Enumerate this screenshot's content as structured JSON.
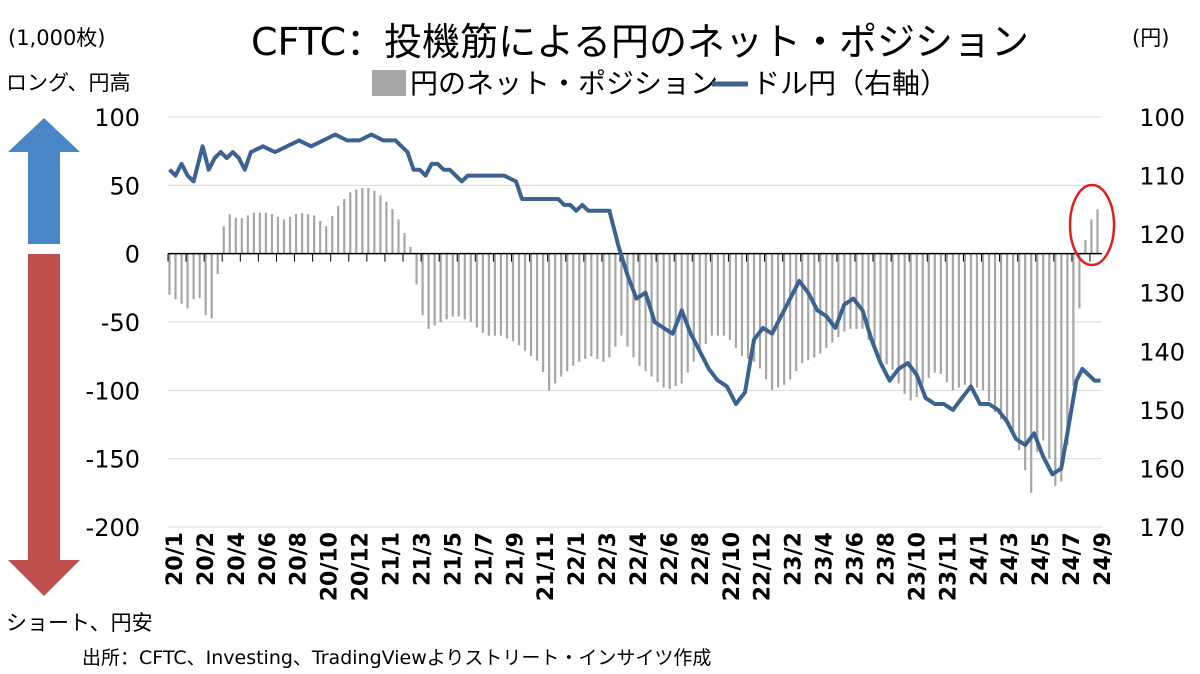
{
  "title": "CFTC：投機筋による円のネット・ポジション",
  "legend": {
    "bar_label": "円のネット・ポジション",
    "line_label": "ドル円（右軸）"
  },
  "left_unit": "(1,000枚)",
  "right_unit": "(円)",
  "arrow_up_label": "ロング、円高",
  "arrow_down_label": "ショート、円安",
  "source": "出所：CFTC、Investing、TradingViewよりストリート・インサイツ作成",
  "colors": {
    "bars": "#a6a6a6",
    "line": "#3b6290",
    "arrow_up": "#4a86c5",
    "arrow_down": "#c0504d",
    "highlight": "#e02020",
    "grid": "#d9d9d9"
  },
  "chart_data": {
    "type": "bar+line",
    "x_tick_labels": [
      "20/1",
      "20/2",
      "20/4",
      "20/6",
      "20/8",
      "20/10",
      "20/12",
      "21/1",
      "21/3",
      "21/5",
      "21/7",
      "21/9",
      "21/11",
      "22/1",
      "22/3",
      "22/4",
      "22/6",
      "22/8",
      "22/10",
      "22/12",
      "23/2",
      "23/4",
      "23/6",
      "23/8",
      "23/10",
      "23/11",
      "24/1",
      "24/3",
      "24/5",
      "24/7",
      "24/9"
    ],
    "y_left": {
      "min": -200,
      "max": 100,
      "ticks": [
        100,
        50,
        0,
        -50,
        -100,
        -150,
        -200
      ]
    },
    "y_right": {
      "min": 100,
      "max": 170,
      "inverted": true,
      "ticks": [
        100,
        110,
        120,
        130,
        140,
        150,
        160,
        170
      ]
    },
    "bar_series": {
      "name": "円のネット・ポジション",
      "weekly_anchors": [
        [
          0,
          -30
        ],
        [
          3,
          -35
        ],
        [
          6,
          -40
        ],
        [
          9,
          -30
        ],
        [
          11,
          -35
        ],
        [
          13,
          -55
        ],
        [
          15,
          -40
        ],
        [
          17,
          10
        ],
        [
          19,
          30
        ],
        [
          23,
          25
        ],
        [
          28,
          30
        ],
        [
          33,
          30
        ],
        [
          38,
          25
        ],
        [
          43,
          30
        ],
        [
          48,
          28
        ],
        [
          52,
          20
        ],
        [
          56,
          35
        ],
        [
          60,
          45
        ],
        [
          63,
          48
        ],
        [
          66,
          48
        ],
        [
          69,
          45
        ],
        [
          72,
          38
        ],
        [
          75,
          30
        ],
        [
          78,
          15
        ],
        [
          80,
          5
        ],
        [
          81,
          -5
        ],
        [
          83,
          -40
        ],
        [
          86,
          -55
        ],
        [
          90,
          -50
        ],
        [
          95,
          -45
        ],
        [
          100,
          -50
        ],
        [
          105,
          -60
        ],
        [
          110,
          -60
        ],
        [
          115,
          -65
        ],
        [
          120,
          -75
        ],
        [
          123,
          -80
        ],
        [
          126,
          -100
        ],
        [
          130,
          -90
        ],
        [
          135,
          -80
        ],
        [
          140,
          -75
        ],
        [
          145,
          -80
        ],
        [
          150,
          -60
        ],
        [
          155,
          -80
        ],
        [
          160,
          -90
        ],
        [
          165,
          -100
        ],
        [
          170,
          -95
        ],
        [
          175,
          -75
        ],
        [
          180,
          -60
        ],
        [
          185,
          -60
        ],
        [
          190,
          -75
        ],
        [
          195,
          -80
        ],
        [
          200,
          -100
        ],
        [
          205,
          -95
        ],
        [
          210,
          -80
        ],
        [
          215,
          -75
        ],
        [
          220,
          -65
        ],
        [
          225,
          -55
        ],
        [
          230,
          -55
        ],
        [
          235,
          -75
        ],
        [
          240,
          -85
        ],
        [
          243,
          -100
        ],
        [
          247,
          -110
        ],
        [
          250,
          -95
        ],
        [
          255,
          -85
        ],
        [
          260,
          -100
        ],
        [
          265,
          -95
        ],
        [
          270,
          -100
        ],
        [
          275,
          -120
        ],
        [
          279,
          -125
        ],
        [
          283,
          -150
        ],
        [
          286,
          -175
        ],
        [
          289,
          -130
        ],
        [
          292,
          -150
        ],
        [
          295,
          -180
        ],
        [
          298,
          -140
        ],
        [
          301,
          -75
        ],
        [
          303,
          -5
        ],
        [
          305,
          25
        ],
        [
          307,
          25
        ],
        [
          309,
          40
        ]
      ]
    },
    "line_series": {
      "name": "ドル円（右軸）",
      "weekly_anchors": [
        [
          0,
          109
        ],
        [
          2,
          110
        ],
        [
          4,
          108
        ],
        [
          6,
          110
        ],
        [
          8,
          111
        ],
        [
          10,
          107
        ],
        [
          11,
          105
        ],
        [
          13,
          109
        ],
        [
          15,
          107
        ],
        [
          17,
          106
        ],
        [
          19,
          107
        ],
        [
          21,
          106
        ],
        [
          23,
          107
        ],
        [
          25,
          109
        ],
        [
          27,
          106
        ],
        [
          31,
          105
        ],
        [
          35,
          106
        ],
        [
          39,
          105
        ],
        [
          43,
          104
        ],
        [
          47,
          105
        ],
        [
          51,
          104
        ],
        [
          55,
          103
        ],
        [
          59,
          104
        ],
        [
          63,
          104
        ],
        [
          67,
          103
        ],
        [
          71,
          104
        ],
        [
          75,
          104
        ],
        [
          79,
          106
        ],
        [
          81,
          109
        ],
        [
          83,
          109
        ],
        [
          85,
          110
        ],
        [
          87,
          108
        ],
        [
          89,
          108
        ],
        [
          91,
          109
        ],
        [
          93,
          109
        ],
        [
          95,
          110
        ],
        [
          97,
          111
        ],
        [
          99,
          110
        ],
        [
          101,
          110
        ],
        [
          103,
          110
        ],
        [
          107,
          110
        ],
        [
          111,
          110
        ],
        [
          115,
          111
        ],
        [
          117,
          114
        ],
        [
          119,
          114
        ],
        [
          121,
          114
        ],
        [
          124,
          114
        ],
        [
          127,
          114
        ],
        [
          129,
          114
        ],
        [
          131,
          115
        ],
        [
          133,
          115
        ],
        [
          135,
          116
        ],
        [
          137,
          115
        ],
        [
          139,
          116
        ],
        [
          142,
          116
        ],
        [
          144,
          116
        ],
        [
          146,
          116
        ],
        [
          149,
          122
        ],
        [
          152,
          127
        ],
        [
          155,
          131
        ],
        [
          158,
          130
        ],
        [
          161,
          135
        ],
        [
          164,
          136
        ],
        [
          167,
          137
        ],
        [
          170,
          133
        ],
        [
          173,
          137
        ],
        [
          176,
          140
        ],
        [
          179,
          143
        ],
        [
          182,
          145
        ],
        [
          185,
          146
        ],
        [
          188,
          149
        ],
        [
          191,
          147
        ],
        [
          194,
          138
        ],
        [
          197,
          136
        ],
        [
          200,
          137
        ],
        [
          203,
          134
        ],
        [
          206,
          131
        ],
        [
          209,
          128
        ],
        [
          212,
          130
        ],
        [
          215,
          133
        ],
        [
          218,
          134
        ],
        [
          221,
          136
        ],
        [
          224,
          132
        ],
        [
          227,
          131
        ],
        [
          230,
          133
        ],
        [
          233,
          138
        ],
        [
          236,
          142
        ],
        [
          239,
          145
        ],
        [
          242,
          143
        ],
        [
          245,
          142
        ],
        [
          248,
          144
        ],
        [
          251,
          148
        ],
        [
          254,
          149
        ],
        [
          257,
          149
        ],
        [
          260,
          150
        ],
        [
          263,
          148
        ],
        [
          266,
          146
        ],
        [
          269,
          149
        ],
        [
          272,
          149
        ],
        [
          275,
          150
        ],
        [
          278,
          152
        ],
        [
          281,
          155
        ],
        [
          284,
          156
        ],
        [
          287,
          154
        ],
        [
          290,
          158
        ],
        [
          293,
          161
        ],
        [
          296,
          160
        ],
        [
          299,
          151
        ],
        [
          301,
          145
        ],
        [
          303,
          143
        ],
        [
          305,
          144
        ],
        [
          307,
          145
        ]
      ]
    }
  }
}
